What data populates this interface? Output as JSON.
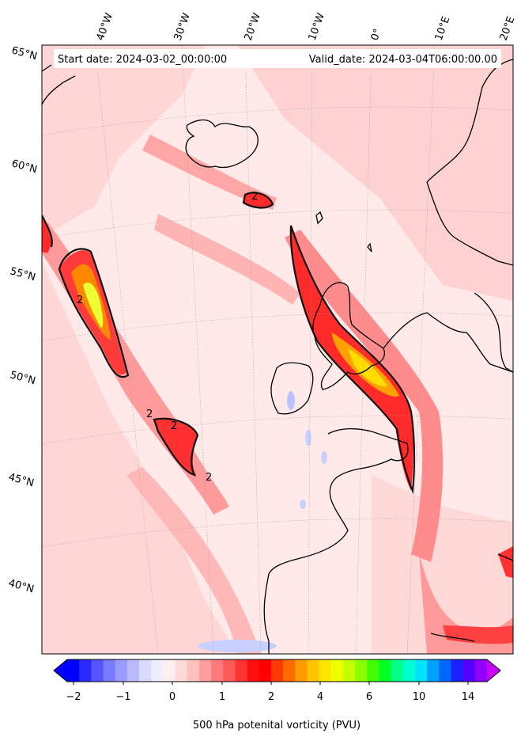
{
  "header": {
    "start_date": "Start date: 2024-03-02_00:00:00",
    "valid_date": "Valid_date: 2024-03-04T06:00:00.00"
  },
  "longitude_labels": [
    "40°W",
    "30°W",
    "20°W",
    "10°W",
    "0°",
    "10°E",
    "20°E"
  ],
  "latitude_labels": [
    "65°N",
    "60°N",
    "55°N",
    "50°N",
    "45°N",
    "40°N"
  ],
  "contour_labels": [
    "2",
    "2",
    "2",
    "2",
    "2"
  ],
  "colorbar": {
    "label": "500 hPa potenital vorticity (PVU)",
    "ticks": [
      "−2",
      "−1",
      "0",
      "1",
      "2",
      "4",
      "6",
      "10",
      "14"
    ],
    "colors": [
      "#0000ff",
      "#2a2aff",
      "#5555ff",
      "#7a7aff",
      "#9a9aff",
      "#babaff",
      "#dadaff",
      "#eeeeff",
      "#ffeeee",
      "#ffdada",
      "#ffc0c0",
      "#ff9e9e",
      "#ff7a7a",
      "#ff5a5a",
      "#ff3333",
      "#ff1010",
      "#ff0000",
      "#ff3a00",
      "#ff6a00",
      "#ff9a00",
      "#ffc400",
      "#ffe400",
      "#eeff00",
      "#c4ff00",
      "#8aff00",
      "#44ff00",
      "#00ff22",
      "#00ff88",
      "#00ffd0",
      "#00e4ff",
      "#00a0ff",
      "#0066ff",
      "#1a22ff",
      "#5500ff",
      "#9000ff"
    ],
    "under_color": "#0000ff",
    "over_color": "#cc00ff"
  },
  "palette": {
    "background": "#ffe9e9",
    "pv_light": "#ffcccc",
    "pv_mid": "#ff9999",
    "pv_strong": "#ff5555",
    "pv_red": "#ff1a1a",
    "pv_orange": "#ff8800",
    "pv_yellow": "#ffdd00",
    "pv_lime": "#eeff33",
    "negative": "#b8c4ff",
    "coast": "#000000"
  }
}
